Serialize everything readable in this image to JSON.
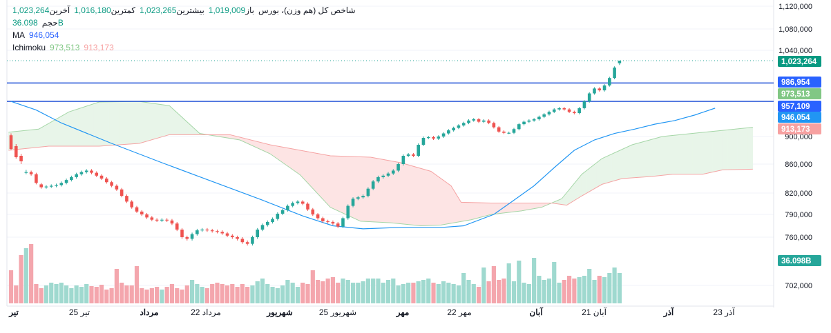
{
  "legend": {
    "symbol": "شاخص کل (هم وزن)، بورس",
    "open_label": "باز",
    "open_value": "1,019,009",
    "high_label": "بیشترین",
    "high_value": "1,023,265",
    "low_label": "کمترین",
    "low_value": "1,016,180",
    "close_label": "آخرین",
    "close_value": "1,023,264",
    "volume_label": "حجم",
    "volume_value": "36.098B",
    "ma_label": "MA",
    "ma_value": "946,054",
    "ichimoku_label": "Ichimoku",
    "ichimoku_a": "973,513",
    "ichimoku_b": "913,173"
  },
  "colors": {
    "up": "#26a69a",
    "down": "#ef5350",
    "ma": "#2196f3",
    "cloud_green": "#e8f5e9",
    "cloud_red": "#fde4e4",
    "span_a": "#a5d6a7",
    "span_b": "#f5a3a3",
    "hline": "#1e4fd6",
    "vol_up": "#9fd9cf",
    "vol_down": "#f4a6ad"
  },
  "chart_data": {
    "type": "candlestick",
    "title": "شاخص کل (هم وزن)، بورس",
    "y_axis_ticks": [
      "702,000",
      "760,000",
      "790,000",
      "820,000",
      "860,000",
      "900,000",
      "1,040,000",
      "1,080,000",
      "1,120,000"
    ],
    "x_axis_ticks": [
      "تیر",
      "25 تیر",
      "مرداد",
      "22 مرداد",
      "شهریور",
      "25 شهریور",
      "مهر",
      "22 مهر",
      "آبان",
      "21 آبان",
      "آذر",
      "23 آذر"
    ],
    "x_axis_bold": [
      true,
      false,
      true,
      false,
      true,
      false,
      true,
      false,
      true,
      false,
      true,
      false
    ],
    "ylim": [
      688000,
      1124000
    ],
    "candles": [
      [
        902000,
        882000,
        905000,
        880000
      ],
      [
        886000,
        870000,
        889000,
        868000
      ],
      [
        872000,
        864000,
        875000,
        860000
      ],
      [
        848000,
        849000,
        852000,
        846000
      ],
      [
        849000,
        846000,
        851000,
        844000
      ],
      [
        846000,
        834000,
        848000,
        832000
      ],
      [
        832000,
        828000,
        834000,
        826000
      ],
      [
        828000,
        829000,
        831000,
        826000
      ],
      [
        829000,
        830000,
        832000,
        827000
      ],
      [
        830000,
        831000,
        833000,
        828000
      ],
      [
        831000,
        834000,
        836000,
        829000
      ],
      [
        834000,
        838000,
        840000,
        832000
      ],
      [
        838000,
        842000,
        844000,
        836000
      ],
      [
        842000,
        846000,
        848000,
        840000
      ],
      [
        846000,
        849000,
        851000,
        844000
      ],
      [
        849000,
        851000,
        853000,
        847000
      ],
      [
        851000,
        848000,
        853000,
        846000
      ],
      [
        848000,
        844000,
        850000,
        842000
      ],
      [
        844000,
        840000,
        846000,
        838000
      ],
      [
        840000,
        835000,
        842000,
        833000
      ],
      [
        835000,
        830000,
        837000,
        828000
      ],
      [
        830000,
        825000,
        832000,
        823000
      ],
      [
        825000,
        816000,
        827000,
        814000
      ],
      [
        816000,
        808000,
        818000,
        806000
      ],
      [
        808000,
        800000,
        810000,
        798000
      ],
      [
        800000,
        794000,
        802000,
        792000
      ],
      [
        794000,
        790000,
        796000,
        788000
      ],
      [
        790000,
        786000,
        792000,
        784000
      ],
      [
        786000,
        783000,
        788000,
        781000
      ],
      [
        783000,
        782000,
        785000,
        780000
      ],
      [
        782000,
        783000,
        785000,
        780000
      ],
      [
        783000,
        782000,
        785000,
        780000
      ],
      [
        782000,
        778000,
        784000,
        776000
      ],
      [
        778000,
        770000,
        780000,
        768000
      ],
      [
        770000,
        760000,
        772000,
        758000
      ],
      [
        760000,
        758000,
        762000,
        756000
      ],
      [
        758000,
        764000,
        766000,
        756000
      ],
      [
        764000,
        769000,
        771000,
        762000
      ],
      [
        769000,
        770000,
        772000,
        767000
      ],
      [
        770000,
        769000,
        772000,
        767000
      ],
      [
        769000,
        768000,
        771000,
        766000
      ],
      [
        768000,
        767000,
        770000,
        765000
      ],
      [
        767000,
        765000,
        769000,
        763000
      ],
      [
        765000,
        762000,
        767000,
        760000
      ],
      [
        762000,
        760000,
        764000,
        758000
      ],
      [
        760000,
        758000,
        762000,
        756000
      ],
      [
        758000,
        754000,
        760000,
        752000
      ],
      [
        754000,
        752000,
        756000,
        750000
      ],
      [
        752000,
        760000,
        762000,
        750000
      ],
      [
        760000,
        770000,
        772000,
        758000
      ],
      [
        770000,
        776000,
        778000,
        768000
      ],
      [
        776000,
        780000,
        782000,
        774000
      ],
      [
        780000,
        784000,
        786000,
        778000
      ],
      [
        784000,
        791000,
        793000,
        782000
      ],
      [
        791000,
        796000,
        798000,
        789000
      ],
      [
        796000,
        802000,
        804000,
        794000
      ],
      [
        802000,
        806000,
        808000,
        800000
      ],
      [
        806000,
        808000,
        810000,
        804000
      ],
      [
        808000,
        805000,
        810000,
        803000
      ],
      [
        805000,
        797000,
        807000,
        795000
      ],
      [
        797000,
        790000,
        799000,
        788000
      ],
      [
        790000,
        785000,
        792000,
        783000
      ],
      [
        785000,
        781000,
        787000,
        779000
      ],
      [
        781000,
        780000,
        783000,
        778000
      ],
      [
        780000,
        778000,
        782000,
        776000
      ],
      [
        778000,
        774000,
        780000,
        772000
      ],
      [
        774000,
        785000,
        787000,
        772000
      ],
      [
        785000,
        802000,
        804000,
        783000
      ],
      [
        802000,
        812000,
        814000,
        800000
      ],
      [
        812000,
        814000,
        816000,
        810000
      ],
      [
        814000,
        816000,
        818000,
        812000
      ],
      [
        816000,
        826000,
        828000,
        814000
      ],
      [
        826000,
        836000,
        838000,
        824000
      ],
      [
        836000,
        842000,
        844000,
        834000
      ],
      [
        842000,
        844000,
        846000,
        840000
      ],
      [
        844000,
        847000,
        849000,
        842000
      ],
      [
        847000,
        851000,
        853000,
        845000
      ],
      [
        851000,
        860000,
        862000,
        849000
      ],
      [
        860000,
        872000,
        874000,
        858000
      ],
      [
        872000,
        874000,
        876000,
        870000
      ],
      [
        874000,
        872000,
        876000,
        870000
      ],
      [
        872000,
        888000,
        890000,
        870000
      ],
      [
        888000,
        898000,
        900000,
        886000
      ],
      [
        898000,
        899000,
        901000,
        896000
      ],
      [
        899000,
        897000,
        901000,
        895000
      ],
      [
        897000,
        900000,
        902000,
        895000
      ],
      [
        900000,
        905000,
        907000,
        898000
      ],
      [
        905000,
        910000,
        912000,
        903000
      ],
      [
        910000,
        914000,
        916000,
        908000
      ],
      [
        914000,
        918000,
        920000,
        912000
      ],
      [
        918000,
        922000,
        924000,
        916000
      ],
      [
        922000,
        926000,
        928000,
        920000
      ],
      [
        926000,
        928000,
        930000,
        924000
      ],
      [
        928000,
        924000,
        930000,
        922000
      ],
      [
        924000,
        926000,
        928000,
        922000
      ],
      [
        926000,
        922000,
        928000,
        920000
      ],
      [
        922000,
        915000,
        924000,
        913000
      ],
      [
        915000,
        908000,
        917000,
        906000
      ],
      [
        908000,
        906000,
        910000,
        904000
      ],
      [
        906000,
        906000,
        908000,
        904000
      ],
      [
        906000,
        912000,
        914000,
        904000
      ],
      [
        912000,
        920000,
        922000,
        910000
      ],
      [
        920000,
        924000,
        926000,
        918000
      ],
      [
        924000,
        926000,
        928000,
        922000
      ],
      [
        926000,
        928000,
        930000,
        924000
      ],
      [
        928000,
        932000,
        934000,
        926000
      ],
      [
        932000,
        936000,
        938000,
        930000
      ],
      [
        936000,
        940000,
        942000,
        934000
      ],
      [
        940000,
        944000,
        946000,
        938000
      ],
      [
        944000,
        946000,
        948000,
        942000
      ],
      [
        946000,
        944000,
        948000,
        942000
      ],
      [
        944000,
        940000,
        946000,
        938000
      ],
      [
        940000,
        938000,
        942000,
        936000
      ],
      [
        938000,
        946000,
        948000,
        936000
      ],
      [
        946000,
        957000,
        959000,
        944000
      ],
      [
        957000,
        970000,
        972000,
        955000
      ],
      [
        970000,
        978000,
        980000,
        968000
      ],
      [
        978000,
        975000,
        980000,
        973000
      ],
      [
        975000,
        983000,
        985000,
        973000
      ],
      [
        983000,
        995000,
        997000,
        981000
      ],
      [
        995000,
        1012000,
        1014000,
        993000
      ],
      [
        1019009,
        1023264,
        1023265,
        1016180
      ]
    ],
    "ma": [
      {
        "bar": 0,
        "value": 957000
      },
      {
        "bar": 5,
        "value": 943000
      },
      {
        "bar": 10,
        "value": 922000
      },
      {
        "bar": 20,
        "value": 890000
      },
      {
        "bar": 30,
        "value": 862000
      },
      {
        "bar": 40,
        "value": 836000
      },
      {
        "bar": 50,
        "value": 810000
      },
      {
        "bar": 58,
        "value": 788000
      },
      {
        "bar": 64,
        "value": 775000
      },
      {
        "bar": 70,
        "value": 771000
      },
      {
        "bar": 78,
        "value": 773000
      },
      {
        "bar": 86,
        "value": 773000
      },
      {
        "bar": 90,
        "value": 775000
      },
      {
        "bar": 96,
        "value": 790000
      },
      {
        "bar": 100,
        "value": 810000
      },
      {
        "bar": 104,
        "value": 830000
      },
      {
        "bar": 108,
        "value": 855000
      },
      {
        "bar": 112,
        "value": 880000
      },
      {
        "bar": 116,
        "value": 895000
      },
      {
        "bar": 120,
        "value": 905000
      },
      {
        "bar": 124,
        "value": 912000
      },
      {
        "bar": 128,
        "value": 920000
      },
      {
        "bar": 132,
        "value": 926000
      },
      {
        "bar": 136,
        "value": 935000
      },
      {
        "bar": 140,
        "value": 946054
      }
    ],
    "span_a": [
      {
        "bar": 0,
        "value": 907000
      },
      {
        "bar": 6,
        "value": 912000
      },
      {
        "bar": 12,
        "value": 940000
      },
      {
        "bar": 18,
        "value": 956000
      },
      {
        "bar": 26,
        "value": 957000
      },
      {
        "bar": 32,
        "value": 950000
      },
      {
        "bar": 38,
        "value": 905000
      },
      {
        "bar": 46,
        "value": 895000
      },
      {
        "bar": 52,
        "value": 875000
      },
      {
        "bar": 58,
        "value": 845000
      },
      {
        "bar": 64,
        "value": 800000
      },
      {
        "bar": 70,
        "value": 781000
      },
      {
        "bar": 76,
        "value": 779000
      },
      {
        "bar": 82,
        "value": 775000
      },
      {
        "bar": 86,
        "value": 776000
      },
      {
        "bar": 92,
        "value": 783000
      },
      {
        "bar": 96,
        "value": 790000
      },
      {
        "bar": 102,
        "value": 795000
      },
      {
        "bar": 106,
        "value": 800000
      },
      {
        "bar": 108,
        "value": 806000
      },
      {
        "bar": 110,
        "value": 812000
      },
      {
        "bar": 114,
        "value": 846000
      },
      {
        "bar": 118,
        "value": 868000
      },
      {
        "bar": 124,
        "value": 888000
      },
      {
        "bar": 130,
        "value": 900000
      },
      {
        "bar": 136,
        "value": 905000
      },
      {
        "bar": 142,
        "value": 910000
      },
      {
        "bar": 148,
        "value": 915000
      }
    ],
    "span_b": [
      {
        "bar": 0,
        "value": 880000
      },
      {
        "bar": 8,
        "value": 886000
      },
      {
        "bar": 18,
        "value": 886000
      },
      {
        "bar": 26,
        "value": 890000
      },
      {
        "bar": 32,
        "value": 903000
      },
      {
        "bar": 38,
        "value": 903000
      },
      {
        "bar": 44,
        "value": 903000
      },
      {
        "bar": 52,
        "value": 888000
      },
      {
        "bar": 58,
        "value": 880000
      },
      {
        "bar": 64,
        "value": 872000
      },
      {
        "bar": 72,
        "value": 870000
      },
      {
        "bar": 78,
        "value": 862000
      },
      {
        "bar": 84,
        "value": 850000
      },
      {
        "bar": 88,
        "value": 830000
      },
      {
        "bar": 90,
        "value": 807000
      },
      {
        "bar": 96,
        "value": 806000
      },
      {
        "bar": 102,
        "value": 806000
      },
      {
        "bar": 108,
        "value": 806000
      },
      {
        "bar": 111,
        "value": 803000
      },
      {
        "bar": 114,
        "value": 816000
      },
      {
        "bar": 118,
        "value": 832000
      },
      {
        "bar": 122,
        "value": 840000
      },
      {
        "bar": 128,
        "value": 843000
      },
      {
        "bar": 132,
        "value": 846000
      },
      {
        "bar": 138,
        "value": 846000
      },
      {
        "bar": 142,
        "value": 852000
      },
      {
        "bar": 148,
        "value": 853000
      }
    ],
    "volume": [
      48,
      26,
      30,
      34,
      36,
      28,
      22,
      26,
      30,
      28,
      30,
      26,
      22,
      26,
      24,
      28,
      25,
      24,
      27,
      20,
      22,
      50,
      30,
      26,
      26,
      24,
      22,
      20,
      22,
      24,
      20,
      24,
      28,
      22,
      20,
      26,
      34,
      28,
      24,
      22,
      28,
      30,
      28,
      26,
      28,
      24,
      28,
      24,
      26,
      32,
      36,
      28,
      24,
      22,
      26,
      34,
      30,
      24,
      30,
      28,
      30,
      34,
      32,
      36,
      38,
      30,
      36,
      34,
      30,
      30,
      32,
      36,
      34,
      36,
      30,
      34,
      36,
      26,
      28,
      30,
      30,
      32,
      34,
      36,
      30,
      28,
      32,
      30,
      28,
      26,
      30,
      34,
      28,
      24,
      28,
      32,
      30,
      34,
      36,
      30,
      32,
      34,
      30,
      28,
      36,
      40,
      34,
      36,
      32,
      30,
      34,
      40,
      36,
      38,
      40,
      38,
      34,
      40,
      38,
      44,
      40,
      44
    ],
    "volume_peaks": [
      {
        "bar": 2,
        "height": 70
      },
      {
        "bar": 3,
        "height": 80
      },
      {
        "bar": 4,
        "height": 86
      },
      {
        "bar": 25,
        "height": 54
      },
      {
        "bar": 60,
        "height": 48
      },
      {
        "bar": 72,
        "height": 36
      },
      {
        "bar": 90,
        "height": 44
      },
      {
        "bar": 94,
        "height": 52
      },
      {
        "bar": 96,
        "height": 54
      },
      {
        "bar": 99,
        "height": 58
      },
      {
        "bar": 101,
        "height": 62
      },
      {
        "bar": 104,
        "height": 66
      },
      {
        "bar": 108,
        "height": 60
      },
      {
        "bar": 115,
        "height": 50
      },
      {
        "bar": 120,
        "height": 52
      },
      {
        "bar": 124,
        "height": 54
      },
      {
        "bar": 125,
        "height": 52
      },
      {
        "bar": 133,
        "height": 50
      },
      {
        "bar": 134,
        "height": 46
      },
      {
        "bar": 135,
        "height": 40
      },
      {
        "bar": 137,
        "height": 58
      },
      {
        "bar": 138,
        "height": 52
      },
      {
        "bar": 139,
        "height": 62
      },
      {
        "bar": 140,
        "height": 60
      }
    ],
    "horizontal_lines": [
      986954,
      957109
    ],
    "last_price_line": 1023264,
    "price_labels": [
      {
        "text": "1,023,264",
        "value": 1023264,
        "color": "#089981"
      },
      {
        "text": "986,954",
        "value": 986954,
        "color": "#2962ff"
      },
      {
        "text": "973,513",
        "value": 973513,
        "color": "#81c784"
      },
      {
        "text": "957,109",
        "value": 957109,
        "color": "#2962ff"
      },
      {
        "text": "946,054",
        "value": 946054,
        "color": "#2196f3"
      },
      {
        "text": "913,173",
        "value": 913173,
        "color": "#f7a1a1"
      },
      {
        "text": "36.098B",
        "value": null,
        "color": "#26a69a"
      }
    ],
    "grid": true,
    "legend_position": "top-left"
  }
}
